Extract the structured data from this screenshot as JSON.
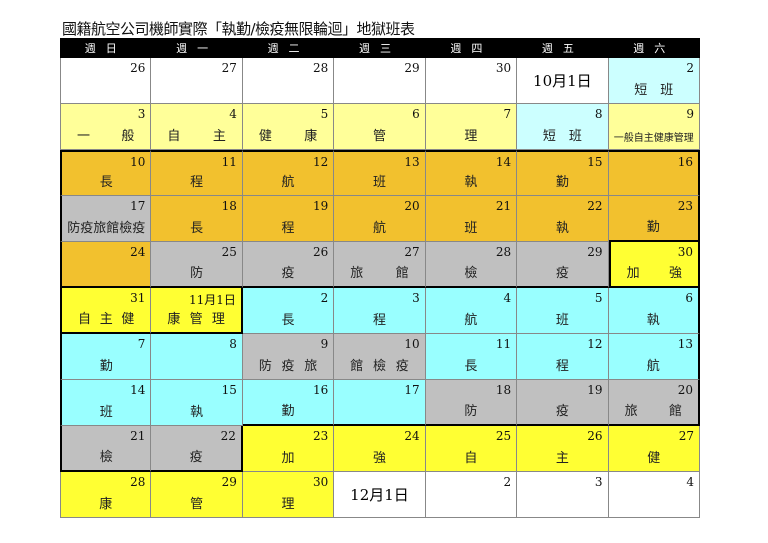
{
  "title": "國籍航空公司機師實際「執勤/檢疫無限輪迴」地獄班表",
  "colors": {
    "white": "#ffffff",
    "lightcyan": "#ccffff",
    "paleyellow": "#ffff99",
    "orange": "#f2c12e",
    "gray": "#c0c0c0",
    "cyan": "#99ffff",
    "yellow": "#ffff33"
  },
  "weekdays": [
    "週日",
    "週一",
    "週二",
    "週三",
    "週四",
    "週五",
    "週六"
  ],
  "rows": [
    [
      {
        "day": "26",
        "text": "",
        "color": "white"
      },
      {
        "day": "27",
        "text": "",
        "color": "white"
      },
      {
        "day": "28",
        "text": "",
        "color": "white"
      },
      {
        "day": "29",
        "text": "",
        "color": "white"
      },
      {
        "day": "30",
        "text": "",
        "color": "white"
      },
      {
        "big": "10月1日",
        "color": "white"
      },
      {
        "day": "2",
        "text": "短　班",
        "color": "lightcyan"
      }
    ],
    [
      {
        "day": "3",
        "text": "一般",
        "color": "paleyellow",
        "spread": true
      },
      {
        "day": "4",
        "text": "自主",
        "color": "paleyellow",
        "spread": true
      },
      {
        "day": "5",
        "text": "健康",
        "color": "paleyellow",
        "spread": true
      },
      {
        "day": "6",
        "text": "管",
        "color": "paleyellow"
      },
      {
        "day": "7",
        "text": "理",
        "color": "paleyellow"
      },
      {
        "day": "8",
        "text": "短　班",
        "color": "lightcyan"
      },
      {
        "day": "9",
        "text": "一般自主健康管理",
        "color": "paleyellow",
        "small": true
      }
    ],
    [
      {
        "day": "10",
        "text": "長",
        "color": "orange"
      },
      {
        "day": "11",
        "text": "程",
        "color": "orange"
      },
      {
        "day": "12",
        "text": "航",
        "color": "orange"
      },
      {
        "day": "13",
        "text": "班",
        "color": "orange"
      },
      {
        "day": "14",
        "text": "執",
        "color": "orange"
      },
      {
        "day": "15",
        "text": "勤",
        "color": "orange"
      },
      {
        "day": "16",
        "text": "",
        "color": "orange"
      }
    ],
    [
      {
        "day": "17",
        "text": "防疫旅館檢疫",
        "color": "gray"
      },
      {
        "day": "18",
        "text": "長",
        "color": "orange"
      },
      {
        "day": "19",
        "text": "程",
        "color": "orange"
      },
      {
        "day": "20",
        "text": "航",
        "color": "orange"
      },
      {
        "day": "21",
        "text": "班",
        "color": "orange"
      },
      {
        "day": "22",
        "text": "執",
        "color": "orange"
      },
      {
        "day": "23",
        "text": "勤",
        "color": "orange"
      }
    ],
    [
      {
        "day": "24",
        "text": "",
        "color": "orange"
      },
      {
        "day": "25",
        "text": "防",
        "color": "gray"
      },
      {
        "day": "26",
        "text": "疫",
        "color": "gray"
      },
      {
        "day": "27",
        "text": "旅館",
        "color": "gray",
        "spread": true
      },
      {
        "day": "28",
        "text": "檢",
        "color": "gray"
      },
      {
        "day": "29",
        "text": "疫",
        "color": "gray"
      },
      {
        "day": "30",
        "text": "加強",
        "color": "yellow",
        "spread": true
      }
    ],
    [
      {
        "day": "31",
        "text": "自主健",
        "color": "yellow",
        "spread": true
      },
      {
        "day": "11月1日",
        "text": "康管理",
        "color": "yellow",
        "spread": true
      },
      {
        "day": "2",
        "text": "長",
        "color": "cyan"
      },
      {
        "day": "3",
        "text": "程",
        "color": "cyan"
      },
      {
        "day": "4",
        "text": "航",
        "color": "cyan"
      },
      {
        "day": "5",
        "text": "班",
        "color": "cyan"
      },
      {
        "day": "6",
        "text": "執",
        "color": "cyan"
      }
    ],
    [
      {
        "day": "7",
        "text": "勤",
        "color": "cyan"
      },
      {
        "day": "8",
        "text": "",
        "color": "cyan"
      },
      {
        "day": "9",
        "text": "防疫旅",
        "color": "gray",
        "spread": true
      },
      {
        "day": "10",
        "text": "館檢疫",
        "color": "gray",
        "spread": true
      },
      {
        "day": "11",
        "text": "長",
        "color": "cyan"
      },
      {
        "day": "12",
        "text": "程",
        "color": "cyan"
      },
      {
        "day": "13",
        "text": "航",
        "color": "cyan"
      }
    ],
    [
      {
        "day": "14",
        "text": "班",
        "color": "cyan"
      },
      {
        "day": "15",
        "text": "執",
        "color": "cyan"
      },
      {
        "day": "16",
        "text": "勤",
        "color": "cyan"
      },
      {
        "day": "17",
        "text": "",
        "color": "cyan"
      },
      {
        "day": "18",
        "text": "防",
        "color": "gray"
      },
      {
        "day": "19",
        "text": "疫",
        "color": "gray"
      },
      {
        "day": "20",
        "text": "旅館",
        "color": "gray",
        "spread": true
      }
    ],
    [
      {
        "day": "21",
        "text": "檢",
        "color": "gray"
      },
      {
        "day": "22",
        "text": "疫",
        "color": "gray"
      },
      {
        "day": "23",
        "text": "加",
        "color": "yellow"
      },
      {
        "day": "24",
        "text": "強",
        "color": "yellow"
      },
      {
        "day": "25",
        "text": "自",
        "color": "yellow"
      },
      {
        "day": "26",
        "text": "主",
        "color": "yellow"
      },
      {
        "day": "27",
        "text": "健",
        "color": "yellow"
      }
    ],
    [
      {
        "day": "28",
        "text": "康",
        "color": "yellow"
      },
      {
        "day": "29",
        "text": "管",
        "color": "yellow"
      },
      {
        "day": "30",
        "text": "理",
        "color": "yellow"
      },
      {
        "big": "12月1日",
        "color": "white"
      },
      {
        "day": "2",
        "text": "",
        "color": "white"
      },
      {
        "day": "3",
        "text": "",
        "color": "white"
      },
      {
        "day": "4",
        "text": "",
        "color": "white"
      }
    ]
  ]
}
